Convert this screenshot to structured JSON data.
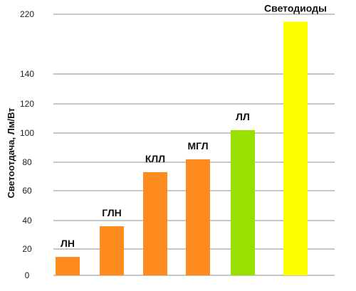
{
  "chart_data": {
    "type": "bar",
    "title": "",
    "xlabel": "",
    "ylabel": "Светоотдача, Лм/Вт",
    "categories": [
      "ЛН",
      "ГЛН",
      "КЛЛ",
      "МГЛ",
      "ЛЛ",
      "Светодиоды"
    ],
    "values": [
      14,
      36,
      73,
      82,
      102,
      210
    ],
    "bar_colors": [
      "#ff8a1d",
      "#ff8a1d",
      "#ff8a1d",
      "#ff8a1d",
      "#99e000",
      "#ffff00"
    ],
    "y_ticks": [
      {
        "value": 0,
        "label": "0"
      },
      {
        "value": 20,
        "label": "20"
      },
      {
        "value": 40,
        "label": "40"
      },
      {
        "value": 60,
        "label": "60"
      },
      {
        "value": 80,
        "label": "80"
      },
      {
        "value": 100,
        "label": "100"
      },
      {
        "value": 120,
        "label": "120"
      },
      {
        "value": 140,
        "label": "140"
      },
      {
        "value": 220,
        "label": "220"
      }
    ],
    "ylim": [
      0,
      220
    ],
    "grid": true,
    "legend": false,
    "gridline_color": "#8c8c8c"
  }
}
